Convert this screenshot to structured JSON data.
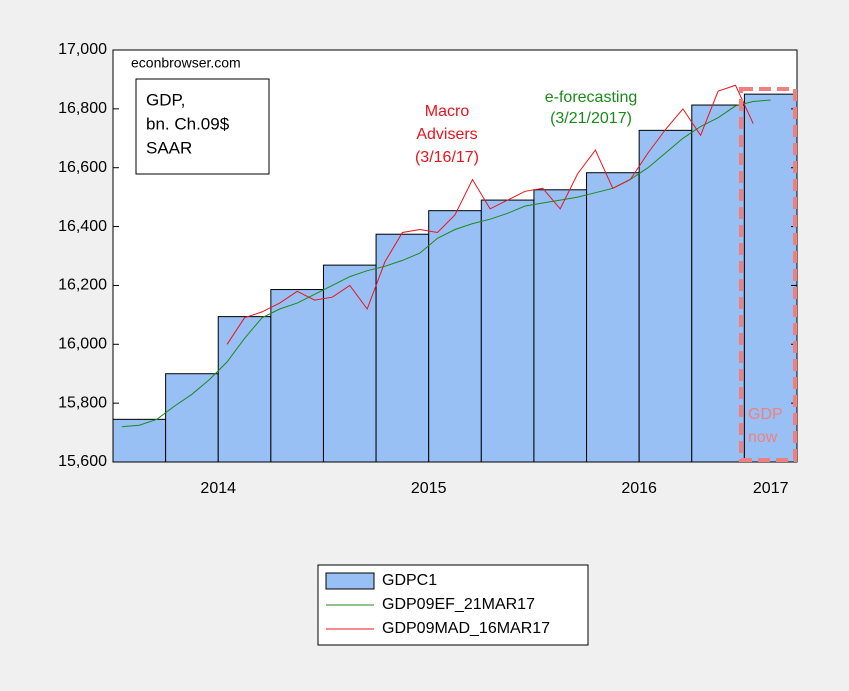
{
  "chart_data": {
    "type": "bar_line",
    "source": "econbrowser.com",
    "unit_note": [
      "GDP,",
      "bn. Ch.09$",
      "SAAR"
    ],
    "annotations": [
      {
        "text": [
          "Macro",
          "Advisers",
          "(3/16/17)"
        ],
        "color": "#e8141c"
      },
      {
        "text": [
          "e-forecasting",
          "(3/21/2017)"
        ],
        "color": "#1a8a1a"
      },
      {
        "text": [
          "GDP",
          "now"
        ],
        "color": "#f08080"
      }
    ],
    "xlim": [
      2014,
      2017.25
    ],
    "xticks": [
      {
        "value": 2014.5,
        "label": "2014"
      },
      {
        "value": 2015.5,
        "label": "2015"
      },
      {
        "value": 2016.5,
        "label": "2016"
      },
      {
        "value": 2017.125,
        "label": "2017"
      }
    ],
    "ylim": [
      15600,
      17000
    ],
    "yticks": [
      {
        "value": 15600,
        "label": "15,600"
      },
      {
        "value": 15800,
        "label": "15,800"
      },
      {
        "value": 16000,
        "label": "16,000"
      },
      {
        "value": 16200,
        "label": "16,200"
      },
      {
        "value": 16400,
        "label": "16,400"
      },
      {
        "value": 16600,
        "label": "16,600"
      },
      {
        "value": 16800,
        "label": "16,800"
      },
      {
        "value": 17000,
        "label": "17,000"
      }
    ],
    "bars": {
      "name": "GDPC1",
      "color": "#99c0f5",
      "bins": [
        2014,
        2014.25,
        2014.5,
        2014.75,
        2015,
        2015.25,
        2015.5,
        2015.75,
        2016,
        2016.25,
        2016.5,
        2016.75,
        2017,
        2017.25
      ],
      "values": [
        15745,
        15900,
        16094,
        16186,
        16269,
        16374,
        16454,
        16490,
        16525,
        16583,
        16727,
        16813,
        16850
      ]
    },
    "series": [
      {
        "name": "GDP09EF_21MAR17",
        "color": "#1a8a1a",
        "x": [
          2014.042,
          2014.125,
          2014.208,
          2014.292,
          2014.375,
          2014.458,
          2014.542,
          2014.625,
          2014.708,
          2014.792,
          2014.875,
          2014.958,
          2015.042,
          2015.125,
          2015.208,
          2015.292,
          2015.375,
          2015.458,
          2015.542,
          2015.625,
          2015.708,
          2015.792,
          2015.875,
          2015.958,
          2016.042,
          2016.125,
          2016.208,
          2016.292,
          2016.375,
          2016.458,
          2016.542,
          2016.625,
          2016.708,
          2016.792,
          2016.875,
          2016.958,
          2017.042,
          2017.125
        ],
        "values": [
          15720,
          15725,
          15745,
          15790,
          15830,
          15880,
          15940,
          16020,
          16090,
          16120,
          16140,
          16170,
          16200,
          16230,
          16250,
          16265,
          16285,
          16310,
          16360,
          16390,
          16410,
          16425,
          16445,
          16470,
          16480,
          16490,
          16500,
          16515,
          16530,
          16560,
          16600,
          16650,
          16700,
          16740,
          16770,
          16810,
          16825,
          16830
        ]
      },
      {
        "name": "GDP09MAD_16MAR17",
        "color": "#e8141c",
        "x": [
          2014.542,
          2014.625,
          2014.708,
          2014.792,
          2014.875,
          2014.958,
          2015.042,
          2015.125,
          2015.208,
          2015.292,
          2015.375,
          2015.458,
          2015.542,
          2015.625,
          2015.708,
          2015.792,
          2015.875,
          2015.958,
          2016.042,
          2016.125,
          2016.208,
          2016.292,
          2016.375,
          2016.458,
          2016.542,
          2016.625,
          2016.708,
          2016.792,
          2016.875,
          2016.958,
          2017.042
        ],
        "values": [
          16000,
          16090,
          16110,
          16140,
          16180,
          16150,
          16160,
          16200,
          16120,
          16280,
          16380,
          16390,
          16380,
          16440,
          16560,
          16460,
          16490,
          16520,
          16530,
          16460,
          16580,
          16660,
          16530,
          16560,
          16650,
          16730,
          16800,
          16710,
          16860,
          16880,
          16750
        ]
      }
    ]
  }
}
